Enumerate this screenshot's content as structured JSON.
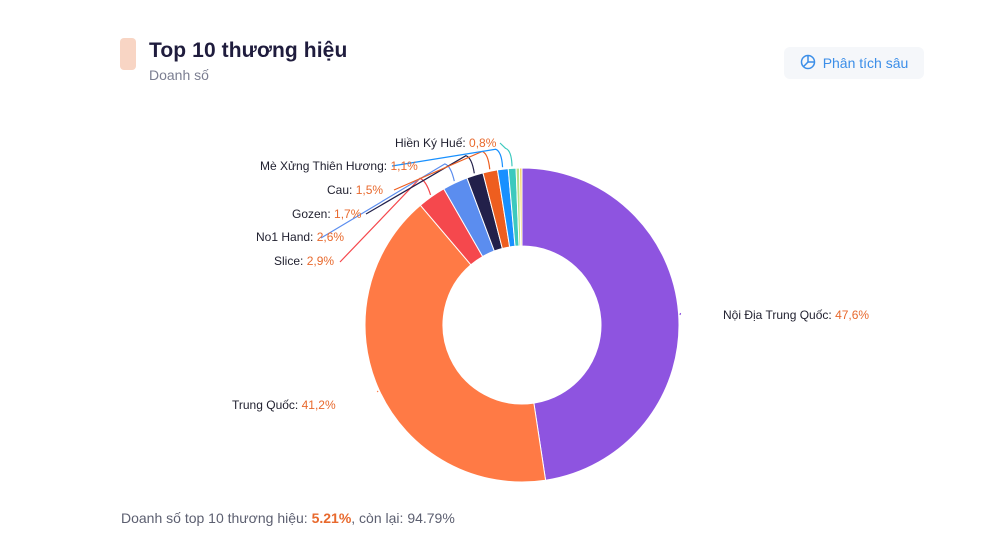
{
  "header": {
    "title": "Top 10 thương hiệu",
    "subtitle": "Doanh số",
    "accent_color": "#f8d5c4"
  },
  "actions": {
    "analyze_label": "Phân tích sâu",
    "analyze_icon": "pie-chart-icon"
  },
  "chart_data": {
    "type": "pie",
    "variant": "donut",
    "title": "Top 10 thương hiệu",
    "subtitle": "Doanh số",
    "categories": [
      "Nội Địa Trung Quốc",
      "Trung Quốc",
      "Slice",
      "No1 Hand",
      "Gozen",
      "Cau",
      "Mè Xửng Thiên Hương",
      "Hiền Ký Huế",
      "(unlabeled 9)",
      "(unlabeled 10)"
    ],
    "values": [
      47.6,
      41.2,
      2.9,
      2.6,
      1.7,
      1.5,
      1.1,
      0.8,
      0.35,
      0.25
    ],
    "colors": [
      "#8e54e0",
      "#ff7a45",
      "#f5484d",
      "#5b8def",
      "#22204a",
      "#ee5e1f",
      "#1890ff",
      "#3cc9be",
      "#b5e08c",
      "#f7d060"
    ],
    "value_format": "percent, comma decimal",
    "legend": "none (leader-line labels)"
  },
  "labels": [
    {
      "name": "Nội Địa Trung Quốc",
      "value": "47,6%"
    },
    {
      "name": "Trung Quốc",
      "value": "41,2%"
    },
    {
      "name": "Slice",
      "value": "2,9%"
    },
    {
      "name": "No1 Hand",
      "value": "2,6%"
    },
    {
      "name": "Gozen",
      "value": "1,7%"
    },
    {
      "name": "Cau",
      "value": "1,5%"
    },
    {
      "name": "Mè Xửng Thiên Hương",
      "value": "1,1%"
    },
    {
      "name": "Hiền Ký Huế",
      "value": "0,8%"
    }
  ],
  "footer": {
    "prefix": "Doanh số top 10 thương hiệu: ",
    "top_share": "5.21%",
    "middle": ", còn lại: ",
    "rest_share": "94.79%"
  }
}
